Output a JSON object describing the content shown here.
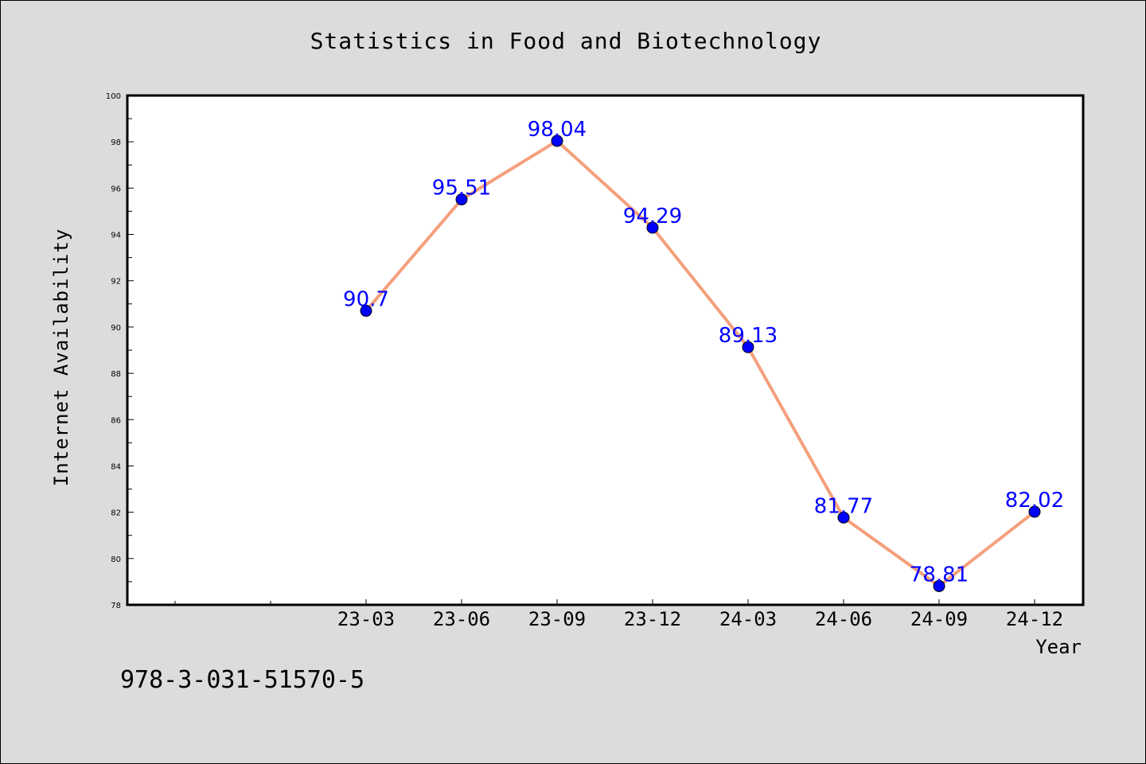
{
  "chart_data": {
    "type": "line",
    "title": "Statistics in Food and Biotechnology",
    "xlabel": "Year",
    "ylabel": "Internet Availability",
    "categories": [
      "23-03",
      "23-06",
      "23-09",
      "23-12",
      "24-03",
      "24-06",
      "24-09",
      "24-12"
    ],
    "series": [
      {
        "values": [
          90.7,
          95.51,
          98.04,
          94.29,
          89.13,
          81.77,
          78.81,
          82.02
        ],
        "labels": [
          "90.7",
          "95.51",
          "98.04",
          "94.29",
          "89.13",
          "81.77",
          "78.81",
          "82.02"
        ],
        "line_color": "#f4a07c",
        "marker_color": "#0000ff",
        "label_color": "#0000ff"
      }
    ],
    "ylim": [
      78,
      100
    ],
    "yticks": [
      78,
      80,
      82,
      84,
      86,
      88,
      90,
      92,
      94,
      96,
      98,
      100
    ],
    "grid": false
  },
  "footer_text": "978-3-031-51570-5"
}
